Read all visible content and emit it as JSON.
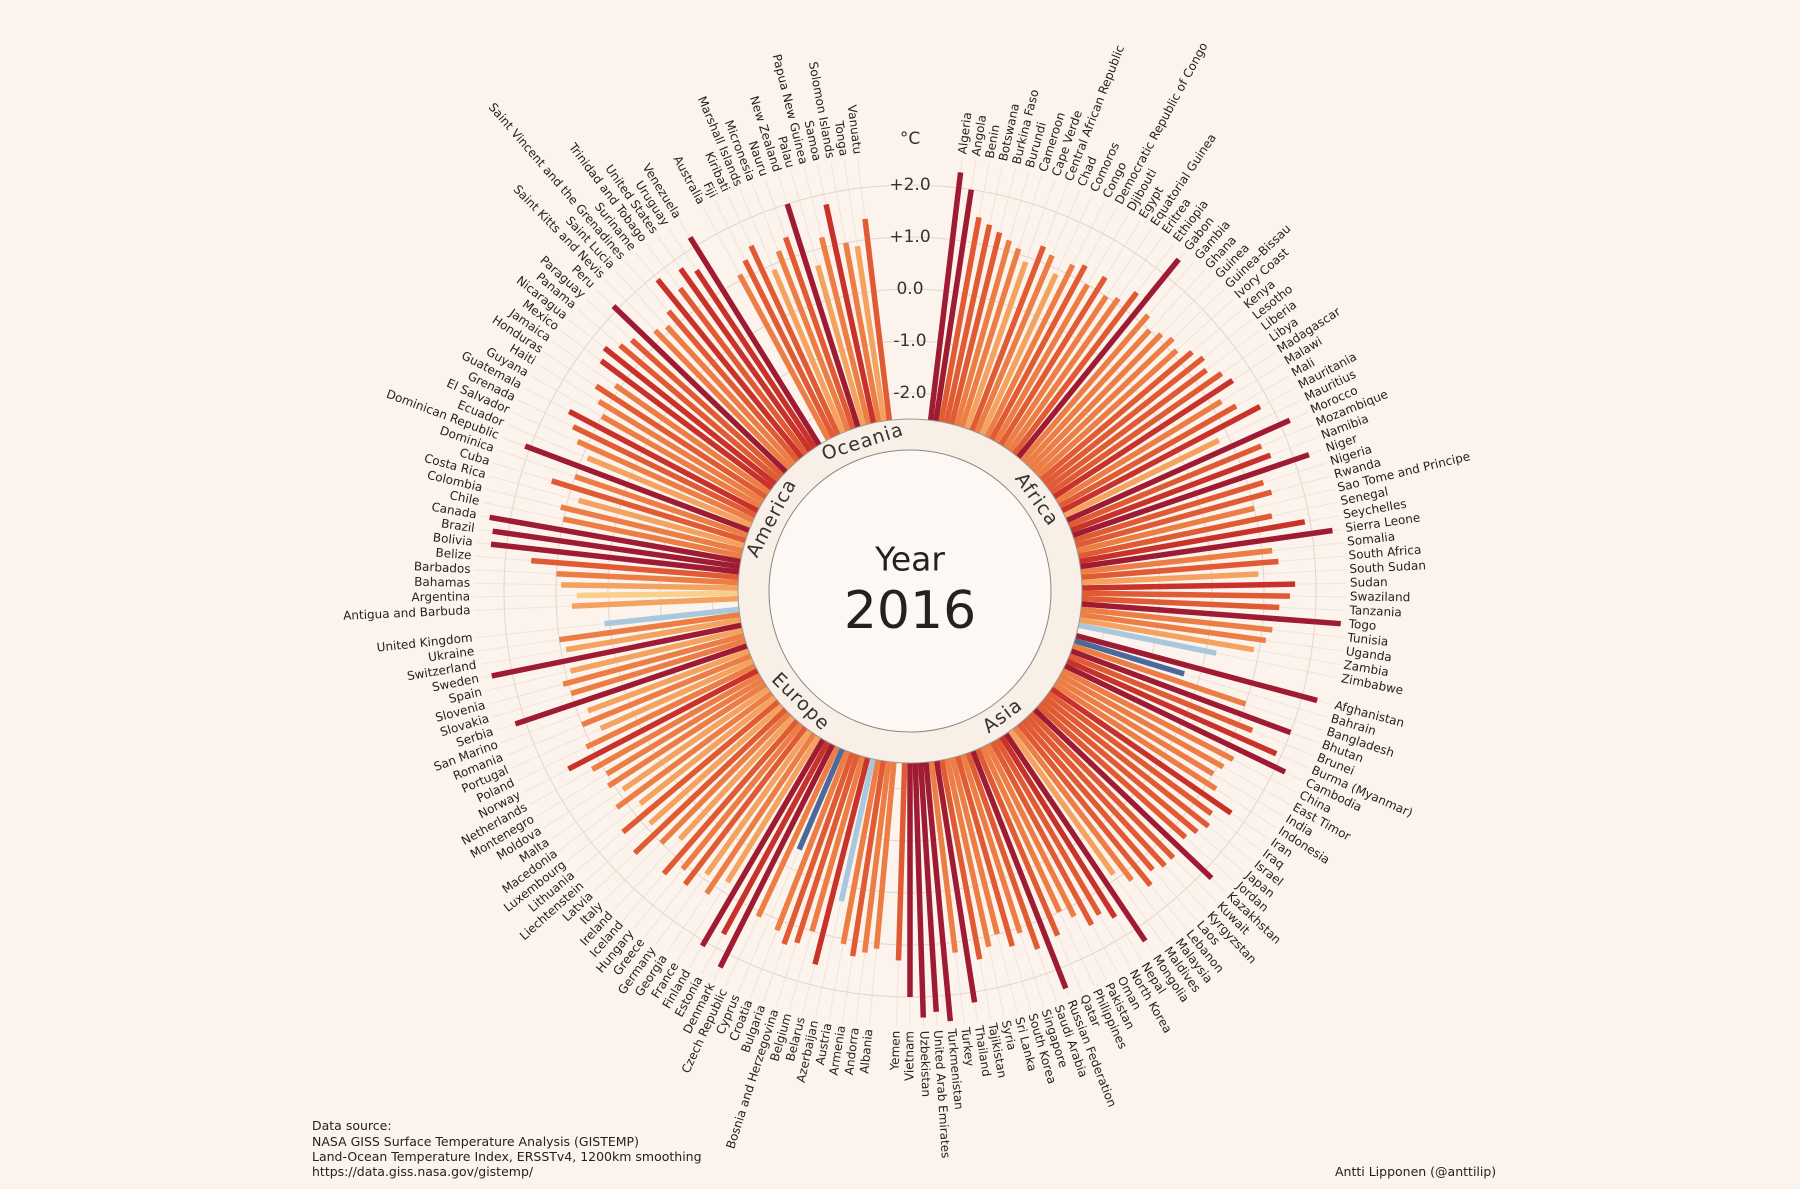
{
  "chart_data": {
    "type": "radial-bar",
    "title": "Year",
    "subtitle": "2016",
    "y_label": "°C",
    "ylim": [
      -2.5,
      2.5
    ],
    "yticks": [
      {
        "value": 2,
        "label": "+2.0"
      },
      {
        "value": 1,
        "label": "+1.0"
      },
      {
        "value": 0,
        "label": "0.0"
      },
      {
        "value": -1,
        "label": "-1.0"
      },
      {
        "value": -2,
        "label": "-2.0"
      }
    ],
    "grid": true,
    "continents": [
      {
        "name": "Africa",
        "countries": [
          "Algeria",
          "Angola",
          "Benin",
          "Botswana",
          "Burkina Faso",
          "Burundi",
          "Cameroon",
          "Cape Verde",
          "Central African Republic",
          "Chad",
          "Comoros",
          "Congo",
          "Democratic Republic of Congo",
          "Djibouti",
          "Egypt",
          "Equatorial Guinea",
          "Eritrea",
          "Ethiopia",
          "Gabon",
          "Gambia",
          "Ghana",
          "Guinea",
          "Guinea-Bissau",
          "Ivory Coast",
          "Kenya",
          "Lesotho",
          "Liberia",
          "Libya",
          "Madagascar",
          "Malawi",
          "Mali",
          "Mauritania",
          "Mauritius",
          "Morocco",
          "Mozambique",
          "Namibia",
          "Niger",
          "Nigeria",
          "Rwanda",
          "Sao Tome and Principe",
          "Senegal",
          "Seychelles",
          "Sierra Leone",
          "Somalia",
          "South Africa",
          "South Sudan",
          "Sudan",
          "Swaziland",
          "Tanzania",
          "Togo",
          "Tunisia",
          "Uganda",
          "Zambia",
          "Zimbabwe"
        ],
        "values": [
          2.3,
          2.0,
          1.5,
          1.4,
          1.3,
          1.2,
          1.1,
          0.9,
          1.3,
          1.2,
          0.9,
          1.2,
          1.3,
          1.0,
          1.3,
          1.0,
          1.1,
          1.4,
          2.4,
          1.2,
          1.0,
          1.1,
          1.2,
          1.1,
          1.3,
          1.4,
          1.3,
          1.5,
          1.6,
          1.2,
          1.4,
          1.8,
          0.8,
          2.2,
          1.5,
          1.6,
          2.3,
          1.3,
          1.4,
          1.0,
          1.3,
          1.9,
          2.4,
          1.2,
          1.3,
          0.9,
          1.6,
          1.5,
          1.3,
          2.5,
          1.2,
          1.1,
          0.9,
          0.2
        ],
        "colors": [
          "#9e1b32",
          "#9e1b32",
          "#e05a33",
          "#e05a33",
          "#e05a33",
          "#ec7d45",
          "#ec7d45",
          "#f3a35f",
          "#e05a33",
          "#ec7d45",
          "#f3a35f",
          "#ec7d45",
          "#e05a33",
          "#ec7d45",
          "#e05a33",
          "#ec7d45",
          "#ec7d45",
          "#e05a33",
          "#9e1b32",
          "#ec7d45",
          "#ec7d45",
          "#ec7d45",
          "#ec7d45",
          "#ec7d45",
          "#e05a33",
          "#e05a33",
          "#e05a33",
          "#e05a33",
          "#c8322a",
          "#ec7d45",
          "#e05a33",
          "#c8322a",
          "#f3a35f",
          "#9e1b32",
          "#e05a33",
          "#c8322a",
          "#9e1b32",
          "#e05a33",
          "#e05a33",
          "#ec7d45",
          "#e05a33",
          "#c8322a",
          "#9e1b32",
          "#ec7d45",
          "#e05a33",
          "#f3a35f",
          "#c8322a",
          "#e05a33",
          "#e05a33",
          "#9e1b32",
          "#ec7d45",
          "#ec7d45",
          "#f3a35f",
          "#a9c8dd"
        ]
      },
      {
        "name": "Asia",
        "countries": [
          "Afghanistan",
          "Bahrain",
          "Bangladesh",
          "Bhutan",
          "Brunei",
          "Burma (Myanmar)",
          "Cambodia",
          "China",
          "East Timor",
          "India",
          "Indonesia",
          "Iran",
          "Iraq",
          "Israel",
          "Japan",
          "Jordan",
          "Kazakhstan",
          "Kuwait",
          "Kyrgyzstan",
          "Laos",
          "Lebanon",
          "Malaysia",
          "Maldives",
          "Mongolia",
          "Nepal",
          "North Korea",
          "Oman",
          "Pakistan",
          "Philippines",
          "Qatar",
          "Russian Federation",
          "Saudi Arabia",
          "Singapore",
          "South Korea",
          "Sri Lanka",
          "Syria",
          "Tajikistan",
          "Thailand",
          "Turkey",
          "Turkmenistan",
          "United Arab Emirates",
          "Uzbekistan",
          "Vietnam",
          "Yemen"
        ],
        "values": [
          2.3,
          -0.3,
          1.0,
          2.0,
          1.3,
          1.9,
          2.2,
          1.2,
          1.1,
          1.0,
          1.2,
          1.7,
          1.4,
          1.5,
          1.4,
          1.3,
          2.2,
          1.4,
          1.4,
          1.3,
          1.5,
          1.2,
          0.9,
          2.3,
          1.6,
          1.4,
          1.5,
          1.2,
          1.0,
          1.4,
          2.4,
          1.5,
          1.1,
          1.3,
          1.0,
          1.2,
          1.4,
          2.2,
          1.2,
          2.5,
          2.3,
          2.4,
          2.0,
          1.3
        ],
        "colors": [
          "#9e1b32",
          "#4b6a9b",
          "#ec7d45",
          "#9e1b32",
          "#e05a33",
          "#c8322a",
          "#9e1b32",
          "#ec7d45",
          "#ec7d45",
          "#ec7d45",
          "#ec7d45",
          "#c8322a",
          "#e05a33",
          "#e05a33",
          "#e05a33",
          "#e05a33",
          "#9e1b32",
          "#e05a33",
          "#e05a33",
          "#e05a33",
          "#e05a33",
          "#ec7d45",
          "#f3a35f",
          "#9e1b32",
          "#c8322a",
          "#e05a33",
          "#e05a33",
          "#ec7d45",
          "#ec7d45",
          "#e05a33",
          "#9e1b32",
          "#e05a33",
          "#ec7d45",
          "#e05a33",
          "#ec7d45",
          "#ec7d45",
          "#e05a33",
          "#9e1b32",
          "#ec7d45",
          "#9e1b32",
          "#9e1b32",
          "#9e1b32",
          "#9e1b32",
          "#e05a33"
        ]
      },
      {
        "name": "Europe",
        "countries": [
          "Albania",
          "Andorra",
          "Armenia",
          "Austria",
          "Azerbaijan",
          "Belarus",
          "Belgium",
          "Bosnia and Herzegovina",
          "Bulgaria",
          "Croatia",
          "Cyprus",
          "Czech Republic",
          "Denmark",
          "Estonia",
          "Finland",
          "France",
          "Georgia",
          "Germany",
          "Greece",
          "Hungary",
          "Iceland",
          "Ireland",
          "Italy",
          "Latvia",
          "Liechtenstein",
          "Lithuania",
          "Luxembourg",
          "Macedonia",
          "Malta",
          "Moldova",
          "Montenegro",
          "Netherlands",
          "Norway",
          "Poland",
          "Portugal",
          "Romania",
          "San Marino",
          "Serbia",
          "Slovakia",
          "Slovenia",
          "Spain",
          "Sweden",
          "Switzerland",
          "Ukraine",
          "United Kingdom"
        ],
        "values": [
          1.1,
          1.2,
          1.3,
          1.1,
          0.3,
          1.6,
          1.0,
          1.3,
          1.4,
          1.2,
          -0.4,
          1.1,
          2.3,
          1.7,
          2.1,
          0.8,
          1.2,
          0.9,
          1.3,
          1.1,
          1.4,
          0.7,
          1.0,
          1.5,
          0.9,
          1.4,
          0.8,
          1.2,
          0.9,
          1.1,
          1.0,
          1.2,
          1.6,
          1.1,
          0.7,
          1.0,
          0.8,
          2.2,
          1.0,
          1.1,
          0.9,
          2.4,
          0.9,
          1.0,
          0.1
        ],
        "colors": [
          "#ec7d45",
          "#ec7d45",
          "#e05a33",
          "#ec7d45",
          "#a9c8dd",
          "#c8322a",
          "#ec7d45",
          "#e05a33",
          "#e05a33",
          "#ec7d45",
          "#4b6a9b",
          "#ec7d45",
          "#9e1b32",
          "#c8322a",
          "#9e1b32",
          "#f3a35f",
          "#ec7d45",
          "#f3a35f",
          "#e05a33",
          "#ec7d45",
          "#e05a33",
          "#f3a35f",
          "#ec7d45",
          "#e05a33",
          "#f3a35f",
          "#e05a33",
          "#f3a35f",
          "#ec7d45",
          "#f3a35f",
          "#ec7d45",
          "#ec7d45",
          "#ec7d45",
          "#c8322a",
          "#ec7d45",
          "#f3a35f",
          "#ec7d45",
          "#f3a35f",
          "#9e1b32",
          "#ec7d45",
          "#ec7d45",
          "#f3a35f",
          "#9e1b32",
          "#f3a35f",
          "#ec7d45",
          "#a9c8dd"
        ]
      },
      {
        "name": "America",
        "countries": [
          "Antigua and Barbuda",
          "Argentina",
          "Bahamas",
          "Barbados",
          "Belize",
          "Bolivia",
          "Brazil",
          "Canada",
          "Chile",
          "Colombia",
          "Costa Rica",
          "Cuba",
          "Dominica",
          "Dominican Republic",
          "Ecuador",
          "El Salvador",
          "Grenada",
          "Guatemala",
          "Guyana",
          "Haiti",
          "Honduras",
          "Jamaica",
          "Mexico",
          "Nicaragua",
          "Panama",
          "Paraguay",
          "Peru",
          "Saint Kitts and Nevis",
          "Saint Lucia",
          "Saint Vincent and the Grenadines",
          "Suriname",
          "Trinidad and Tobago",
          "United States",
          "Uruguay",
          "Venezuela"
        ],
        "values": [
          0.7,
          0.6,
          0.9,
          1.0,
          1.5,
          2.3,
          2.3,
          2.4,
          1.0,
          1.1,
          0.8,
          1.4,
          1.0,
          2.1,
          0.9,
          1.2,
          1.4,
          1.6,
          1.0,
          1.2,
          1.4,
          1.1,
          1.6,
          1.7,
          1.5,
          1.4,
          2.1,
          1.2,
          1.1,
          1.3,
          1.9,
          1.5,
          1.8,
          1.6,
          2.2
        ],
        "colors": [
          "#f3a35f",
          "#f9cf8a",
          "#f3a35f",
          "#ec7d45",
          "#e05a33",
          "#9e1b32",
          "#9e1b32",
          "#9e1b32",
          "#ec7d45",
          "#ec7d45",
          "#f3a35f",
          "#e05a33",
          "#ec7d45",
          "#9e1b32",
          "#f3a35f",
          "#ec7d45",
          "#e05a33",
          "#c8322a",
          "#ec7d45",
          "#ec7d45",
          "#e05a33",
          "#ec7d45",
          "#c8322a",
          "#c8322a",
          "#e05a33",
          "#e05a33",
          "#9e1b32",
          "#ec7d45",
          "#ec7d45",
          "#e05a33",
          "#c8322a",
          "#e05a33",
          "#c8322a",
          "#c8322a",
          "#9e1b32"
        ]
      },
      {
        "name": "Oceania",
        "countries": [
          "Australia",
          "Fiji",
          "Kiribati",
          "Marshall Islands",
          "Micronesia",
          "Nauru",
          "New Zealand",
          "Palau",
          "Papua New Guinea",
          "Samoa",
          "Solomon Islands",
          "Tonga",
          "Vanuatu"
        ],
        "values": [
          1.1,
          1.3,
          1.5,
          0.9,
          1.2,
          1.4,
          2.0,
          0.7,
          1.2,
          1.8,
          1.0,
          0.9,
          1.4
        ],
        "colors": [
          "#ec7d45",
          "#e05a33",
          "#e05a33",
          "#f3a35f",
          "#ec7d45",
          "#e05a33",
          "#9e1b32",
          "#f3a35f",
          "#ec7d45",
          "#c8322a",
          "#ec7d45",
          "#f3a35f",
          "#e05a33"
        ]
      }
    ],
    "source": [
      "Data source:",
      "NASA GISS Surface Temperature Analysis (GISTEMP)",
      "Land-Ocean Temperature Index, ERSSTv4, 1200km smoothing",
      "https://data.giss.nasa.gov/gistemp/"
    ],
    "credit": "Antti Lipponen (@anttilip)"
  }
}
